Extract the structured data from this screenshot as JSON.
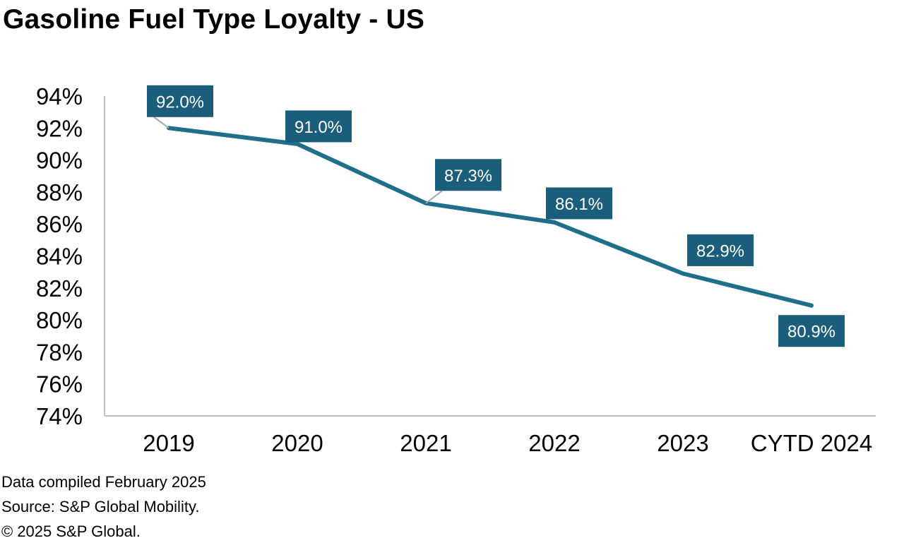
{
  "chart_data": {
    "type": "line",
    "title": "Gasoline Fuel Type Loyalty - US",
    "categories": [
      "2019",
      "2020",
      "2021",
      "2022",
      "2023",
      "CYTD 2024"
    ],
    "values": [
      92.0,
      91.0,
      87.3,
      86.1,
      82.9,
      80.9
    ],
    "data_labels": [
      "92.0%",
      "91.0%",
      "87.3%",
      "86.1%",
      "82.9%",
      "80.9%"
    ],
    "ylim": [
      74,
      94
    ],
    "yticks": [
      74,
      76,
      78,
      80,
      82,
      84,
      86,
      88,
      90,
      92,
      94
    ],
    "ytick_labels": [
      "74%",
      "76%",
      "78%",
      "80%",
      "82%",
      "84%",
      "86%",
      "88%",
      "90%",
      "92%",
      "94%"
    ],
    "xlabel": "",
    "ylabel": "",
    "grid": false,
    "legend": "none",
    "line_color": "#1f6f8b",
    "label_bg_color": "#1b5e7b",
    "label_text_color": "#ffffff"
  },
  "footnotes": {
    "compiled": "Data compiled February 2025",
    "source": "Source: S&P Global Mobility.",
    "copyright": "© 2025 S&P Global."
  }
}
